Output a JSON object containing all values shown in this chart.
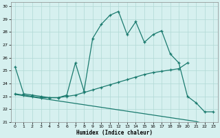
{
  "xlabel": "Humidex (Indice chaleur)",
  "bg_color": "#d6f0ef",
  "grid_color": "#b0d8d5",
  "line_color": "#1a7a6e",
  "xlim": [
    -0.5,
    23.5
  ],
  "ylim": [
    21,
    30.3
  ],
  "yticks": [
    21,
    22,
    23,
    24,
    25,
    26,
    27,
    28,
    29,
    30
  ],
  "xticks": [
    0,
    1,
    2,
    3,
    4,
    5,
    6,
    7,
    8,
    9,
    10,
    11,
    12,
    13,
    14,
    15,
    16,
    17,
    18,
    19,
    20,
    21,
    22,
    23
  ],
  "line1_x": [
    0,
    1,
    2,
    3,
    4,
    5,
    6,
    7,
    8,
    9,
    10,
    11,
    12,
    13,
    14,
    15,
    16,
    17,
    18,
    19,
    20,
    21,
    22,
    23
  ],
  "line1_y": [
    25.3,
    23.2,
    23.1,
    23.0,
    22.9,
    22.9,
    23.1,
    25.6,
    23.4,
    27.5,
    28.6,
    29.3,
    29.6,
    27.8,
    28.8,
    27.2,
    27.8,
    28.1,
    26.3,
    25.6,
    23.0,
    22.5,
    21.8,
    21.8
  ],
  "line2_x": [
    0,
    1,
    2,
    3,
    4,
    5,
    6,
    7,
    8,
    9,
    10,
    11,
    12,
    13,
    14,
    15,
    16,
    17,
    18,
    19,
    20
  ],
  "line2_y": [
    23.2,
    23.1,
    23.0,
    22.9,
    22.9,
    22.9,
    23.0,
    23.1,
    23.3,
    23.5,
    23.7,
    23.9,
    24.1,
    24.3,
    24.5,
    24.7,
    24.85,
    24.95,
    25.05,
    25.15,
    25.6
  ],
  "line3_x": [
    0,
    1,
    2,
    3,
    4,
    5,
    6,
    7,
    8,
    9,
    10,
    11,
    12,
    13,
    14,
    15,
    16,
    17,
    18,
    19,
    20,
    21,
    22,
    23
  ],
  "line3_y": [
    23.15,
    23.05,
    22.95,
    22.85,
    22.75,
    22.65,
    22.55,
    22.45,
    22.35,
    22.25,
    22.15,
    22.05,
    21.95,
    21.85,
    21.75,
    21.65,
    21.55,
    21.45,
    21.35,
    21.25,
    21.15,
    21.05,
    20.85,
    20.65
  ]
}
